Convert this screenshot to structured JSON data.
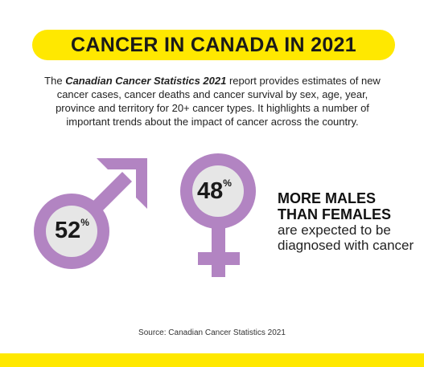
{
  "title": "CANCER IN CANADA IN 2021",
  "intro": {
    "prefix": "The ",
    "report_name": "Canadian Cancer Statistics 2021",
    "suffix": " report provides estimates of new cancer cases, cancer deaths and cancer survival by sex, age, year, province and territory for 20+ cancer types. It highlights a number of important trends about the impact of cancer across the country."
  },
  "male": {
    "value": "52",
    "unit": "%",
    "icon": "male-symbol-icon"
  },
  "female": {
    "value": "48",
    "unit": "%",
    "icon": "female-symbol-icon"
  },
  "caption": {
    "bold_line1": "MORE MALES",
    "bold_line2": "THAN FEMALES",
    "rest": "are expected to be diagnosed with cancer"
  },
  "source": "Source: Canadian Cancer Statistics 2021",
  "colors": {
    "accent_yellow": "#ffe800",
    "symbol_purple": "#b284c2",
    "inner_circle": "#e6e6e6"
  }
}
